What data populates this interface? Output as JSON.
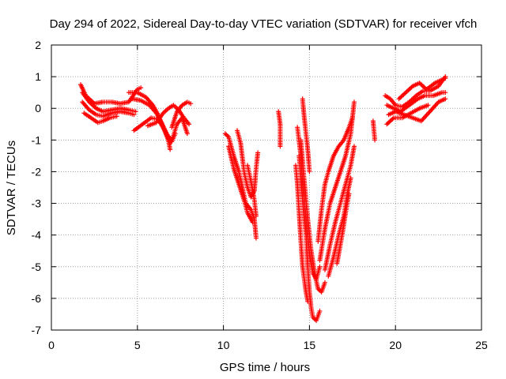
{
  "chart_data": {
    "type": "scatter",
    "title": "Day 294 of 2022, Sidereal Day-to-day VTEC variation (SDTVAR) for receiver vfch",
    "xlabel": "GPS time / hours",
    "ylabel": "SDTVAR / TECUs",
    "xlim": [
      0,
      25
    ],
    "ylim": [
      -7,
      2
    ],
    "xticks": [
      0,
      5,
      10,
      15,
      20,
      25
    ],
    "yticks": [
      -7,
      -6,
      -5,
      -4,
      -3,
      -2,
      -1,
      0,
      1,
      2
    ],
    "grid": true,
    "marker": "+",
    "colors": {
      "points": "#ff0000",
      "grid": "#a0a0a0",
      "axes": "#000000",
      "background": "#ffffff"
    },
    "series": [
      {
        "name": "",
        "tracks": [
          [
            [
              1.7,
              0.75
            ],
            [
              2.0,
              0.4
            ],
            [
              2.5,
              0.15
            ],
            [
              3.0,
              0.2
            ],
            [
              3.5,
              0.2
            ],
            [
              4.0,
              0.15
            ],
            [
              4.5,
              0.2
            ],
            [
              5.0,
              0.6
            ],
            [
              5.2,
              0.65
            ]
          ],
          [
            [
              1.8,
              0.5
            ],
            [
              2.2,
              0.2
            ],
            [
              2.6,
              0.0
            ],
            [
              3.0,
              -0.1
            ],
            [
              3.5,
              -0.05
            ],
            [
              4.0,
              0.0
            ],
            [
              4.5,
              -0.05
            ],
            [
              4.9,
              -0.1
            ]
          ],
          [
            [
              1.8,
              0.2
            ],
            [
              2.2,
              -0.05
            ],
            [
              2.6,
              -0.2
            ],
            [
              3.0,
              -0.25
            ],
            [
              3.5,
              -0.15
            ],
            [
              4.0,
              -0.1
            ],
            [
              4.5,
              -0.15
            ],
            [
              4.8,
              -0.2
            ]
          ],
          [
            [
              1.9,
              -0.15
            ],
            [
              2.3,
              -0.3
            ],
            [
              2.7,
              -0.45
            ],
            [
              3.0,
              -0.4
            ],
            [
              3.4,
              -0.3
            ],
            [
              3.8,
              -0.25
            ]
          ],
          [
            [
              4.5,
              0.5
            ],
            [
              5.0,
              0.5
            ],
            [
              5.5,
              0.35
            ],
            [
              5.9,
              0.1
            ],
            [
              6.2,
              -0.2
            ],
            [
              6.5,
              -0.6
            ],
            [
              6.8,
              -1.0
            ],
            [
              6.9,
              -1.3
            ]
          ],
          [
            [
              4.7,
              0.3
            ],
            [
              5.2,
              0.25
            ],
            [
              5.7,
              0.1
            ],
            [
              6.1,
              -0.15
            ],
            [
              6.4,
              -0.45
            ],
            [
              6.7,
              -0.8
            ],
            [
              7.0,
              -1.05
            ],
            [
              7.2,
              -0.8
            ]
          ],
          [
            [
              4.8,
              -0.7
            ],
            [
              5.3,
              -0.5
            ],
            [
              5.8,
              -0.3
            ],
            [
              6.2,
              -0.35
            ],
            [
              6.6,
              -0.7
            ],
            [
              6.9,
              -1.1
            ],
            [
              7.1,
              -0.85
            ],
            [
              7.3,
              -0.5
            ],
            [
              7.6,
              -0.3
            ],
            [
              7.9,
              -0.8
            ]
          ],
          [
            [
              5.6,
              -0.55
            ],
            [
              6.1,
              -0.45
            ],
            [
              6.5,
              -0.15
            ],
            [
              6.8,
              0.0
            ],
            [
              7.1,
              0.1
            ],
            [
              7.4,
              -0.05
            ],
            [
              7.7,
              -0.3
            ],
            [
              8.0,
              -0.5
            ]
          ],
          [
            [
              7.0,
              -0.6
            ],
            [
              7.3,
              -0.1
            ],
            [
              7.6,
              0.1
            ],
            [
              7.9,
              0.2
            ],
            [
              8.1,
              0.15
            ]
          ],
          [
            [
              10.1,
              -0.8
            ],
            [
              10.3,
              -0.9
            ],
            [
              10.6,
              -1.5
            ],
            [
              10.9,
              -2.0
            ],
            [
              11.1,
              -2.5
            ],
            [
              11.3,
              -3.0
            ],
            [
              11.6,
              -3.2
            ],
            [
              11.8,
              -3.5
            ],
            [
              11.9,
              -4.1
            ]
          ],
          [
            [
              10.3,
              -1.2
            ],
            [
              10.6,
              -1.9
            ],
            [
              10.9,
              -2.4
            ],
            [
              11.2,
              -2.9
            ],
            [
              11.4,
              -3.3
            ],
            [
              11.7,
              -3.6
            ]
          ],
          [
            [
              10.8,
              -0.7
            ],
            [
              11.0,
              -1.1
            ],
            [
              11.2,
              -2.0
            ],
            [
              11.4,
              -2.5
            ],
            [
              11.6,
              -2.8
            ],
            [
              11.8,
              -2.6
            ],
            [
              11.9,
              -1.9
            ],
            [
              12.0,
              -1.4
            ]
          ],
          [
            [
              11.4,
              -1.8
            ],
            [
              11.6,
              -2.3
            ],
            [
              11.8,
              -2.9
            ],
            [
              11.9,
              -3.4
            ]
          ],
          [
            [
              13.2,
              -0.1
            ],
            [
              13.3,
              -0.5
            ],
            [
              13.3,
              -1.2
            ]
          ],
          [
            [
              14.3,
              -0.6
            ],
            [
              14.5,
              -1.5
            ],
            [
              14.6,
              -2.3
            ],
            [
              14.8,
              -3.5
            ],
            [
              15.0,
              -4.6
            ],
            [
              15.2,
              -5.2
            ],
            [
              15.4,
              -5.4
            ],
            [
              15.6,
              -5.0
            ]
          ],
          [
            [
              14.5,
              -1.0
            ],
            [
              14.7,
              -2.3
            ],
            [
              14.9,
              -3.5
            ],
            [
              15.1,
              -4.5
            ],
            [
              15.3,
              -5.2
            ],
            [
              15.5,
              -5.7
            ],
            [
              15.7,
              -5.8
            ],
            [
              15.9,
              -5.5
            ]
          ],
          [
            [
              14.4,
              -1.5
            ],
            [
              14.6,
              -2.9
            ],
            [
              14.8,
              -4.0
            ],
            [
              14.9,
              -5.0
            ],
            [
              15.0,
              -5.8
            ],
            [
              15.1,
              -6.3
            ],
            [
              15.2,
              -6.6
            ],
            [
              15.4,
              -6.7
            ],
            [
              15.6,
              -6.4
            ]
          ],
          [
            [
              14.2,
              -1.8
            ],
            [
              14.3,
              -2.4
            ],
            [
              14.4,
              -3.3
            ],
            [
              14.5,
              -4.2
            ],
            [
              14.6,
              -5.0
            ],
            [
              14.8,
              -5.8
            ],
            [
              14.9,
              -6.1
            ]
          ],
          [
            [
              14.6,
              0.3
            ],
            [
              14.7,
              -0.3
            ],
            [
              14.9,
              -1.3
            ],
            [
              15.0,
              -2.0
            ]
          ],
          [
            [
              15.5,
              -4.2
            ],
            [
              15.7,
              -3.2
            ],
            [
              15.9,
              -2.4
            ],
            [
              16.1,
              -2.0
            ],
            [
              16.4,
              -1.5
            ],
            [
              16.7,
              -1.2
            ],
            [
              17.0,
              -1.0
            ],
            [
              17.3,
              -0.6
            ],
            [
              17.5,
              -0.3
            ]
          ],
          [
            [
              15.6,
              -4.8
            ],
            [
              15.9,
              -3.8
            ],
            [
              16.2,
              -3.0
            ],
            [
              16.5,
              -2.5
            ],
            [
              16.8,
              -2.0
            ],
            [
              17.1,
              -1.5
            ],
            [
              17.4,
              -0.8
            ],
            [
              17.6,
              0.2
            ]
          ],
          [
            [
              15.9,
              -5.1
            ],
            [
              16.2,
              -4.3
            ],
            [
              16.5,
              -3.6
            ],
            [
              16.8,
              -3.0
            ],
            [
              17.1,
              -2.4
            ],
            [
              17.4,
              -1.8
            ],
            [
              17.6,
              -1.2
            ]
          ],
          [
            [
              16.1,
              -5.3
            ],
            [
              16.4,
              -4.7
            ],
            [
              16.7,
              -4.0
            ],
            [
              17.0,
              -3.4
            ],
            [
              17.2,
              -2.7
            ],
            [
              17.4,
              -2.2
            ]
          ],
          [
            [
              16.6,
              -4.9
            ],
            [
              16.9,
              -4.0
            ],
            [
              17.1,
              -3.3
            ],
            [
              17.3,
              -2.7
            ]
          ],
          [
            [
              18.7,
              -0.4
            ],
            [
              18.8,
              -1.0
            ]
          ],
          [
            [
              19.4,
              0.4
            ],
            [
              19.7,
              0.3
            ],
            [
              20.0,
              0.1
            ],
            [
              20.4,
              0.05
            ],
            [
              20.8,
              0.2
            ],
            [
              21.2,
              0.4
            ],
            [
              21.6,
              0.55
            ],
            [
              22.0,
              0.55
            ],
            [
              22.5,
              0.7
            ],
            [
              22.9,
              1.0
            ]
          ],
          [
            [
              19.5,
              0.1
            ],
            [
              19.9,
              0.0
            ],
            [
              20.3,
              -0.1
            ],
            [
              20.8,
              0.1
            ],
            [
              21.3,
              0.3
            ],
            [
              21.7,
              0.4
            ],
            [
              22.2,
              0.4
            ],
            [
              22.7,
              0.5
            ],
            [
              22.9,
              0.5
            ]
          ],
          [
            [
              19.6,
              -0.2
            ],
            [
              20.0,
              -0.1
            ],
            [
              20.5,
              -0.2
            ],
            [
              21.0,
              -0.3
            ],
            [
              21.5,
              -0.4
            ],
            [
              22.0,
              -0.1
            ],
            [
              22.5,
              0.2
            ],
            [
              22.9,
              0.3
            ]
          ],
          [
            [
              19.5,
              -0.5
            ],
            [
              19.9,
              -0.3
            ],
            [
              20.4,
              -0.3
            ],
            [
              20.9,
              -0.15
            ],
            [
              21.4,
              0.0
            ],
            [
              21.9,
              0.1
            ]
          ],
          [
            [
              20.2,
              0.3
            ],
            [
              20.6,
              0.5
            ],
            [
              21.0,
              0.7
            ],
            [
              21.4,
              0.8
            ],
            [
              21.8,
              0.6
            ],
            [
              22.3,
              0.8
            ],
            [
              22.7,
              0.9
            ],
            [
              22.9,
              0.95
            ]
          ]
        ]
      }
    ]
  }
}
